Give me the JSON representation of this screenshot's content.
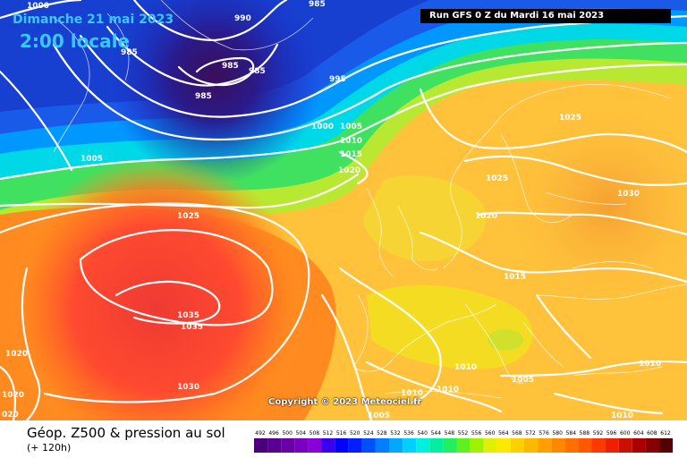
{
  "header": {
    "date": "Dimanche 21 mai 2023",
    "time": "2:00 locale",
    "run": "Run GFS 0 Z du Mardi 16 mai 2023"
  },
  "copyright": "Copyright © 2023 Meteociel.fr",
  "footer": {
    "title": "Géop. Z500 & pression au sol",
    "subtitle": "(+ 120h)"
  },
  "legend": {
    "labels": [
      "492",
      "496",
      "500",
      "504",
      "508",
      "512",
      "516",
      "520",
      "524",
      "528",
      "532",
      "536",
      "540",
      "544",
      "548",
      "552",
      "556",
      "560",
      "564",
      "568",
      "572",
      "576",
      "580",
      "584",
      "588",
      "592",
      "596",
      "600",
      "604",
      "608",
      "612"
    ],
    "colors": [
      "#4a007a",
      "#5a0090",
      "#6a00a8",
      "#7a00c0",
      "#8a00d8",
      "#3a00f0",
      "#0000ff",
      "#0020ff",
      "#0050ff",
      "#0080ff",
      "#00a8ff",
      "#00d0ff",
      "#00f0e0",
      "#00f0a0",
      "#20f060",
      "#60f020",
      "#a0f000",
      "#e0f000",
      "#ffe800",
      "#ffd000",
      "#ffb800",
      "#ffa000",
      "#ff8800",
      "#ff7000",
      "#ff5800",
      "#ff3800",
      "#ee2000",
      "#cc1000",
      "#aa0000",
      "#880000",
      "#550000"
    ]
  },
  "isobars": [
    {
      "text": "1000"
    },
    {
      "text": "990"
    },
    {
      "text": "985"
    },
    {
      "text": "985"
    },
    {
      "text": "985"
    },
    {
      "text": "985"
    },
    {
      "text": "985"
    },
    {
      "text": "995"
    },
    {
      "text": "1000"
    },
    {
      "text": "1005"
    },
    {
      "text": "1010"
    },
    {
      "text": "1015"
    },
    {
      "text": "1020"
    },
    {
      "text": "1005"
    },
    {
      "text": "1025"
    },
    {
      "text": "1025"
    },
    {
      "text": "1025"
    },
    {
      "text": "1030"
    },
    {
      "text": "1020"
    },
    {
      "text": "1015"
    },
    {
      "text": "1035"
    },
    {
      "text": "1035"
    },
    {
      "text": "1030"
    },
    {
      "text": "1020"
    },
    {
      "text": "1020"
    },
    {
      "text": "020"
    },
    {
      "text": "1010"
    },
    {
      "text": "1010"
    },
    {
      "text": "1005"
    },
    {
      "text": "1010"
    },
    {
      "text": "1010"
    },
    {
      "text": "1005"
    },
    {
      "text": "1010"
    }
  ]
}
